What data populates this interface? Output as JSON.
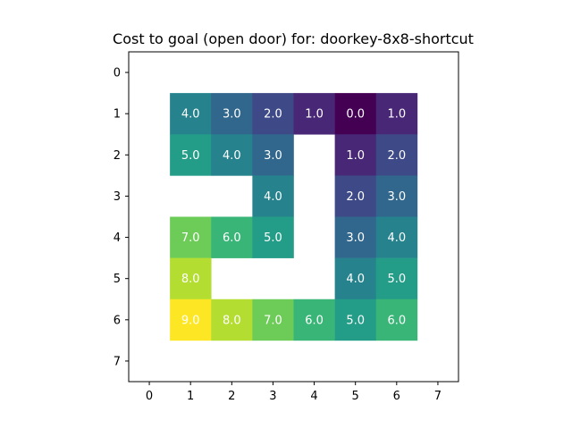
{
  "chart_data": {
    "type": "heatmap",
    "title": "Cost to goal (open door) for: doorkey-8x8-shortcut",
    "xlabel": "",
    "ylabel": "",
    "x_ticks": [
      "0",
      "1",
      "2",
      "3",
      "4",
      "5",
      "6",
      "7"
    ],
    "y_ticks": [
      "0",
      "1",
      "2",
      "3",
      "4",
      "5",
      "6",
      "7"
    ],
    "xlim": [
      -0.5,
      7.5
    ],
    "ylim": [
      7.5,
      -0.5
    ],
    "colormap": "viridis",
    "vmin": 0,
    "vmax": 9,
    "grid": false,
    "values": [
      [
        null,
        null,
        null,
        null,
        null,
        null,
        null,
        null
      ],
      [
        null,
        4.0,
        3.0,
        2.0,
        1.0,
        0.0,
        1.0,
        null
      ],
      [
        null,
        5.0,
        4.0,
        3.0,
        null,
        1.0,
        2.0,
        null
      ],
      [
        null,
        null,
        null,
        4.0,
        null,
        2.0,
        3.0,
        null
      ],
      [
        null,
        7.0,
        6.0,
        5.0,
        null,
        3.0,
        4.0,
        null
      ],
      [
        null,
        8.0,
        null,
        null,
        null,
        4.0,
        5.0,
        null
      ],
      [
        null,
        9.0,
        8.0,
        7.0,
        6.0,
        5.0,
        6.0,
        null
      ],
      [
        null,
        null,
        null,
        null,
        null,
        null,
        null,
        null
      ]
    ]
  }
}
